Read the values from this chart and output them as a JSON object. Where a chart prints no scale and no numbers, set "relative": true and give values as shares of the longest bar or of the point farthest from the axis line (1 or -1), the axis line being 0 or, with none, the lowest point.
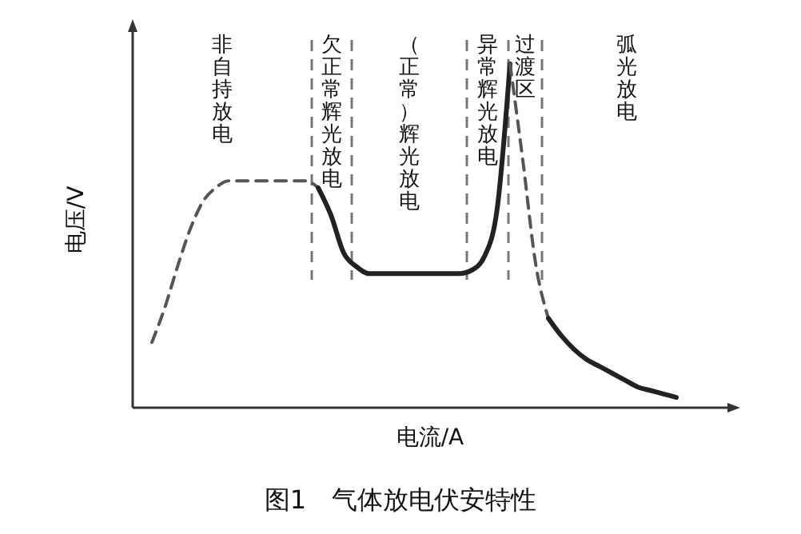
{
  "chart_data": {
    "type": "line",
    "title": "图1　气体放电伏安特性",
    "xlabel": "电流/A",
    "ylabel": "电压/V",
    "relative": true,
    "categories": [
      null,
      null,
      null,
      null,
      null,
      null,
      null,
      null,
      null,
      null,
      null,
      null,
      null,
      null,
      null,
      null,
      null,
      null,
      null,
      null,
      null,
      null,
      null,
      null,
      null,
      null,
      null,
      null,
      null,
      null,
      null,
      null,
      null,
      null,
      null,
      null,
      null,
      null,
      null,
      null,
      null,
      null
    ],
    "series": [
      {
        "color": "#555555",
        "line_style": "dashed",
        "values": [
          0.19,
          0.29,
          0.41,
          0.52,
          0.6,
          0.64,
          0.66,
          0.66,
          0.66,
          0.66,
          0.66,
          0.66,
          0.66,
          0.64,
          null,
          null,
          null,
          null,
          null,
          null,
          null,
          null,
          null,
          null,
          null,
          null,
          null,
          null,
          null,
          null,
          null,
          null,
          null,
          null,
          null,
          null,
          null,
          null,
          null,
          null,
          null,
          null
        ]
      },
      {
        "color": "#222222",
        "line_style": "solid",
        "values": [
          null,
          null,
          null,
          null,
          null,
          null,
          null,
          null,
          null,
          null,
          null,
          null,
          null,
          0.64,
          0.56,
          0.45,
          0.41,
          0.39,
          0.39,
          0.39,
          0.39,
          0.39,
          0.39,
          0.39,
          0.39,
          0.4,
          0.44,
          0.58,
          1,
          null,
          null,
          null,
          null,
          null,
          null,
          null,
          null,
          null,
          null,
          null,
          null,
          null
        ]
      },
      {
        "color": "#555555",
        "line_style": "dashed",
        "values": [
          null,
          null,
          null,
          null,
          null,
          null,
          null,
          null,
          null,
          null,
          null,
          null,
          null,
          null,
          null,
          null,
          null,
          null,
          null,
          null,
          null,
          null,
          null,
          null,
          null,
          null,
          null,
          null,
          1,
          0.72,
          0.42,
          0.26,
          null,
          null,
          null,
          null,
          null,
          null,
          null,
          null,
          null,
          null
        ]
      },
      {
        "color": "#222222",
        "line_style": "solid",
        "values": [
          null,
          null,
          null,
          null,
          null,
          null,
          null,
          null,
          null,
          null,
          null,
          null,
          null,
          null,
          null,
          null,
          null,
          null,
          null,
          null,
          null,
          null,
          null,
          null,
          null,
          null,
          null,
          null,
          null,
          null,
          null,
          0.26,
          0.21,
          0.17,
          0.14,
          0.12,
          0.1,
          0.08,
          0.06,
          0.05,
          0.04,
          0.03
        ]
      }
    ],
    "annotations": [
      "非自持放电",
      "欠正常辉光放电",
      "（正常）辉光放电",
      "异常辉光放电",
      "过渡区",
      "弧光放电"
    ]
  }
}
